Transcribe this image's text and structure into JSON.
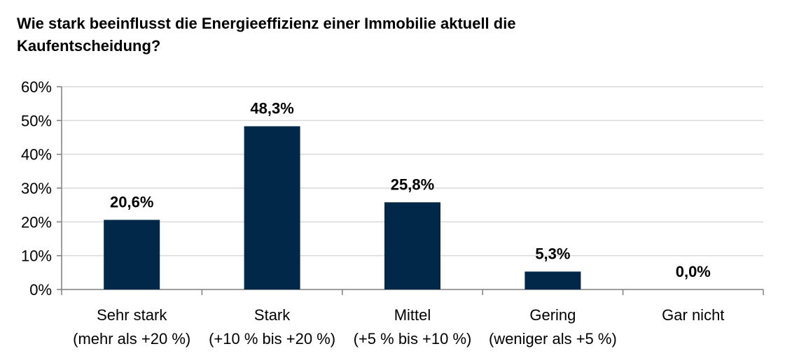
{
  "chart_data": {
    "type": "bar",
    "title": "Wie stark beeinflusst die Energieeffizienz einer Immobilie aktuell die Kaufentscheidung?",
    "categories": [
      [
        "Sehr stark",
        "(mehr als +20 %)"
      ],
      [
        "Stark",
        "(+10 % bis +20 %)"
      ],
      [
        "Mittel",
        "(+5 % bis +10 %)"
      ],
      [
        "Gering",
        "(weniger als +5 %)"
      ],
      [
        "Gar nicht"
      ]
    ],
    "values": [
      20.6,
      48.3,
      25.8,
      5.3,
      0.0
    ],
    "data_labels": [
      "20,6%",
      "48,3%",
      "25,8%",
      "5,3%",
      "0,0%"
    ],
    "yticks": [
      "0%",
      "10%",
      "20%",
      "30%",
      "40%",
      "50%",
      "60%"
    ],
    "ylim": [
      0,
      60
    ],
    "grid": true,
    "bar_color": "#012849",
    "grid_color": "#d9d9d9",
    "axis_color": "#7f7f7f"
  }
}
